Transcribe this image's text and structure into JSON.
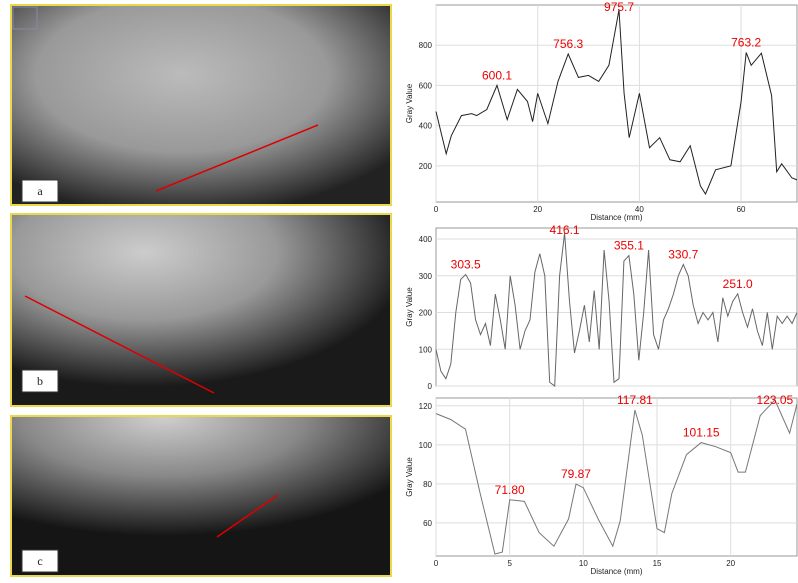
{
  "panels": [
    {
      "label": "a"
    },
    {
      "label": "b"
    },
    {
      "label": "c"
    }
  ],
  "chart_data": [
    {
      "type": "line",
      "x_label": "Distance (mm)",
      "y_label": "Gray Value",
      "color": "#222",
      "x": [
        0,
        2,
        3,
        5,
        7,
        8,
        10,
        12,
        14,
        16,
        18,
        19,
        20,
        22,
        24,
        26,
        28,
        30,
        32,
        34,
        36,
        37,
        38,
        40,
        42,
        44,
        46,
        48,
        50,
        52,
        53,
        55,
        58,
        60,
        61,
        62,
        64,
        66,
        67,
        68,
        70,
        71
      ],
      "values": [
        470,
        260,
        350,
        450,
        460,
        450,
        480,
        600.1,
        430,
        580,
        520,
        420,
        560,
        410,
        620,
        756.3,
        640,
        650,
        620,
        700,
        975.7,
        560,
        340,
        560,
        290,
        340,
        230,
        220,
        300,
        100,
        60,
        180,
        200,
        520,
        763.2,
        700,
        760,
        550,
        170,
        210,
        140,
        130
      ],
      "xlim": [
        0,
        71
      ],
      "xticks": [
        0,
        20,
        40,
        60
      ],
      "ylim": [
        20,
        1000
      ],
      "yticks": [
        200,
        400,
        600,
        800
      ],
      "grid": true,
      "annotations": [
        {
          "label": "600.1",
          "value": 600.1
        },
        {
          "label": "756.3",
          "value": 756.3
        },
        {
          "label": "975.7",
          "value": 975.7
        },
        {
          "label": "763.2",
          "value": 763.2
        }
      ]
    },
    {
      "type": "line",
      "y_label": "Gray Value",
      "color": "#666",
      "values": [
        100,
        40,
        20,
        60,
        200,
        290,
        303.5,
        280,
        180,
        140,
        170,
        110,
        250,
        180,
        100,
        300,
        220,
        100,
        150,
        180,
        310,
        360,
        300,
        10,
        0,
        300,
        416.1,
        230,
        90,
        150,
        220,
        120,
        260,
        100,
        370,
        230,
        10,
        20,
        340,
        355.1,
        250,
        70,
        200,
        370,
        140,
        100,
        180,
        210,
        250,
        300,
        330.7,
        300,
        220,
        170,
        200,
        180,
        200,
        120,
        240,
        190,
        230,
        251.0,
        200,
        160,
        210,
        150,
        110,
        200,
        100,
        190,
        170,
        190,
        170,
        200
      ],
      "ylim": [
        0,
        430
      ],
      "yticks": [
        0,
        100,
        200,
        300,
        400
      ],
      "grid": true,
      "annotations": [
        {
          "label": "303.5",
          "value": 303.5
        },
        {
          "label": "416.1",
          "value": 416.1
        },
        {
          "label": "355.1",
          "value": 355.1
        },
        {
          "label": "330.7",
          "value": 330.7
        },
        {
          "label": "251.0",
          "value": 251.0
        }
      ]
    },
    {
      "type": "line",
      "x_label": "Distance (mm)",
      "y_label": "Gray Value",
      "color": "#777",
      "x": [
        0,
        1,
        2,
        3,
        4,
        4.5,
        5,
        6,
        7,
        8,
        9,
        9.5,
        10,
        11,
        12,
        12.5,
        13.5,
        14,
        15,
        15.5,
        16,
        17,
        18,
        19,
        20,
        20.5,
        21,
        22,
        23,
        24,
        24.5
      ],
      "values": [
        116,
        113,
        108,
        75,
        44,
        45,
        71.8,
        71,
        55,
        48,
        62,
        79.87,
        78,
        62,
        48,
        61,
        117.81,
        105,
        57,
        55,
        75,
        95,
        101.15,
        99,
        96,
        86,
        86,
        115,
        123.05,
        106,
        121
      ],
      "xlim": [
        0,
        24.5
      ],
      "xticks": [
        0,
        5,
        10,
        15,
        20
      ],
      "ylim": [
        43,
        124
      ],
      "yticks": [
        60,
        80,
        100,
        120
      ],
      "grid": true,
      "annotations": [
        {
          "label": "71.80",
          "value": 71.8
        },
        {
          "label": "79.87",
          "value": 79.87
        },
        {
          "label": "117.81",
          "value": 117.81
        },
        {
          "label": "101.15",
          "value": 101.15
        },
        {
          "label": "123.05",
          "value": 123.05
        }
      ]
    }
  ]
}
